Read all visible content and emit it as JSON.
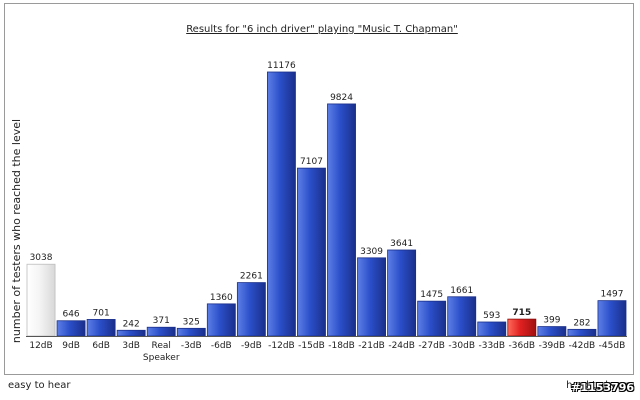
{
  "chart_data": {
    "type": "bar",
    "title": "Results for \"6 inch driver\" playing \"Music T. Chapman\"",
    "ylabel": "number of testers who reached the level",
    "xlabel": "",
    "categories": [
      "12dB",
      "9dB",
      "6dB",
      "3dB",
      "Real Speaker",
      "-3dB",
      "-6dB",
      "-9dB",
      "-12dB",
      "-15dB",
      "-18dB",
      "-21dB",
      "-24dB",
      "-27dB",
      "-30dB",
      "-33dB",
      "-36dB",
      "-39dB",
      "-42dB",
      "-45dB"
    ],
    "values": [
      3038,
      646,
      701,
      242,
      371,
      325,
      1360,
      2261,
      11176,
      7107,
      9824,
      3309,
      3641,
      1475,
      1661,
      593,
      715,
      399,
      282,
      1497
    ],
    "highlight_index": 16,
    "ylim": [
      0,
      11176
    ],
    "grid": false,
    "colors": {
      "bar": "#2b4fc9",
      "bar_dark": "#1a2f8a",
      "bar_light": "#5d7fe6",
      "highlight": "#e02020",
      "first_bar": "#f4f4f4"
    }
  },
  "footer": {
    "left": "easy to hear",
    "right": "hard to hear"
  },
  "watermark": "#1153796"
}
